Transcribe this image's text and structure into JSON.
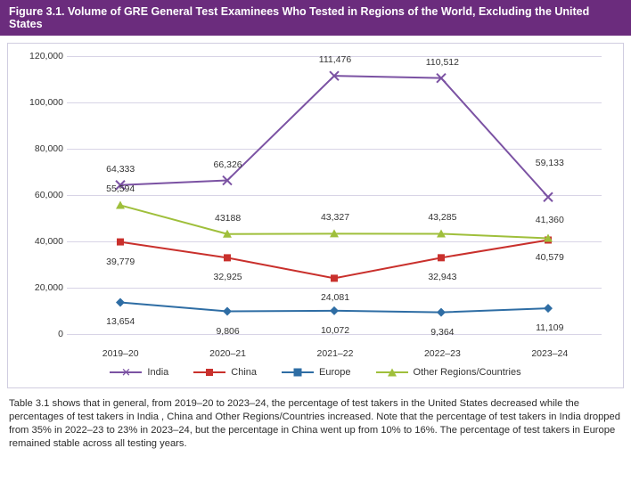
{
  "header": {
    "title": "Figure 3.1. Volume of GRE General Test Examinees Who Tested in Regions of the World, Excluding the United States"
  },
  "chart": {
    "type": "line",
    "categories": [
      "2019–20",
      "2020–21",
      "2021–22",
      "2022–23",
      "2023–24"
    ],
    "ylim": [
      0,
      120000
    ],
    "ytick_step": 20000,
    "yticks": [
      "0",
      "20,000",
      "40,000",
      "60,000",
      "80,000",
      "100,000",
      "120,000"
    ],
    "grid_color": "#d8d4e6",
    "background_color": "#ffffff",
    "line_width": 2,
    "marker_size": 8,
    "series": [
      {
        "name": "India",
        "color": "#7b52a3",
        "marker": "x",
        "values": [
          64333,
          66326,
          111476,
          110512,
          59133
        ],
        "labels": [
          "64,333",
          "66,326",
          "111,476",
          "110,512",
          "59,133"
        ],
        "label_dy": [
          -12,
          -12,
          -12,
          -12,
          -32
        ]
      },
      {
        "name": "China",
        "color": "#c9302c",
        "marker": "square",
        "values": [
          39779,
          32925,
          24081,
          32943,
          40579
        ],
        "labels": [
          "39,779",
          "32,925",
          "24,081",
          "32,943",
          "40,579"
        ],
        "label_dy": [
          16,
          16,
          16,
          16,
          14
        ]
      },
      {
        "name": "Europe",
        "color": "#2e6da4",
        "marker": "diamond",
        "values": [
          13654,
          9806,
          10072,
          9364,
          11109
        ],
        "labels": [
          "13,654",
          "9,806",
          "10,072",
          "9,364",
          "11,109"
        ],
        "label_dy": [
          16,
          16,
          16,
          16,
          16
        ]
      },
      {
        "name": "Other Regions/Countries",
        "color": "#9fbf3b",
        "marker": "triangle",
        "values": [
          55594,
          43188,
          43327,
          43285,
          41360
        ],
        "labels": [
          "55,594",
          "43188",
          "43,327",
          "43,285",
          "41,360"
        ],
        "label_dy": [
          -12,
          -12,
          -12,
          -12,
          -14
        ]
      }
    ],
    "legend_labels": [
      "India",
      "China",
      "Europe",
      "Other Regions/Countries"
    ]
  },
  "caption": {
    "text": "Table 3.1 shows that in general,  from 2019–20 to 2023–24, the percentage of test takers in the United States decreased while the percentages of test takers in India , China and Other Regions/Countries increased. Note that the percentage of test takers in India dropped from 35% in 2022–23 to 23% in 2023–24, but the percentage in China went up from 10% to 16%. The percentage of test takers in Europe remained stable across all testing years."
  }
}
